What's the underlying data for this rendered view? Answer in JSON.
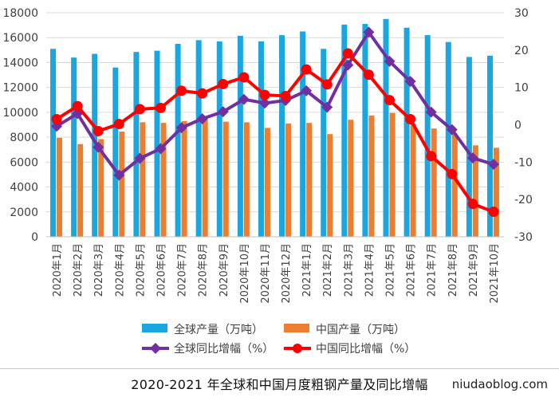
{
  "title": "2020-2021 年全球和中国月度粗钢产量及同比增幅",
  "watermark": "niudaoblog.com",
  "chart_data": {
    "type": "bar",
    "categories": [
      "2020年1月",
      "2020年2月",
      "2020年3月",
      "2020年4月",
      "2020年5月",
      "2020年6月",
      "2020年7月",
      "2020年8月",
      "2020年9月",
      "2020年10月",
      "2020年11月",
      "2020年12月",
      "2021年1月",
      "2021年2月",
      "2021年3月",
      "2021年4月",
      "2021年5月",
      "2021年6月",
      "2021年7月",
      "2021年8月",
      "2021年9月",
      "2021年10月"
    ],
    "ylim_left": [
      0,
      18000
    ],
    "left_ticks": [
      0,
      2000,
      4000,
      6000,
      8000,
      10000,
      12000,
      14000,
      16000,
      18000
    ],
    "ylim_right": [
      -30,
      30
    ],
    "right_ticks": [
      -30,
      -20,
      -10,
      0,
      10,
      20,
      30
    ],
    "grid": true,
    "legend_position": "bottom",
    "series": [
      {
        "name": "全球产量（万吨）",
        "type": "bar",
        "axis": "left",
        "color": "#1aa7e0",
        "values": [
          15100,
          14400,
          14700,
          13600,
          14850,
          14950,
          15500,
          15800,
          15700,
          16150,
          15700,
          16200,
          16500,
          15100,
          17050,
          17100,
          17500,
          16800,
          16200,
          15650,
          14450,
          14550
        ]
      },
      {
        "name": "中国产量（万吨）",
        "type": "bar",
        "axis": "left",
        "color": "#ed7d31",
        "values": [
          7950,
          7450,
          7850,
          8450,
          9200,
          9150,
          9300,
          9450,
          9250,
          9200,
          8750,
          9100,
          9150,
          8250,
          9400,
          9750,
          9950,
          9100,
          8700,
          8300,
          7350,
          7150
        ]
      },
      {
        "name": "全球同比增幅（%）",
        "type": "line",
        "axis": "right",
        "color": "#7030a0",
        "values": [
          -0.4,
          3.0,
          -6.0,
          -13.5,
          -9.0,
          -6.4,
          -0.8,
          1.6,
          3.5,
          6.8,
          5.8,
          6.5,
          9.1,
          4.7,
          16.0,
          24.8,
          17.0,
          11.6,
          3.4,
          -1.3,
          -8.9,
          -10.6
        ]
      },
      {
        "name": "中国同比增幅（%）",
        "type": "line",
        "axis": "right",
        "color": "#ff0000",
        "values": [
          1.5,
          5.0,
          -1.7,
          0.2,
          4.2,
          4.5,
          9.1,
          8.4,
          10.9,
          12.7,
          8.0,
          7.7,
          14.8,
          10.8,
          19.1,
          13.4,
          6.6,
          1.5,
          -8.4,
          -13.2,
          -21.2,
          -23.3
        ]
      }
    ]
  }
}
